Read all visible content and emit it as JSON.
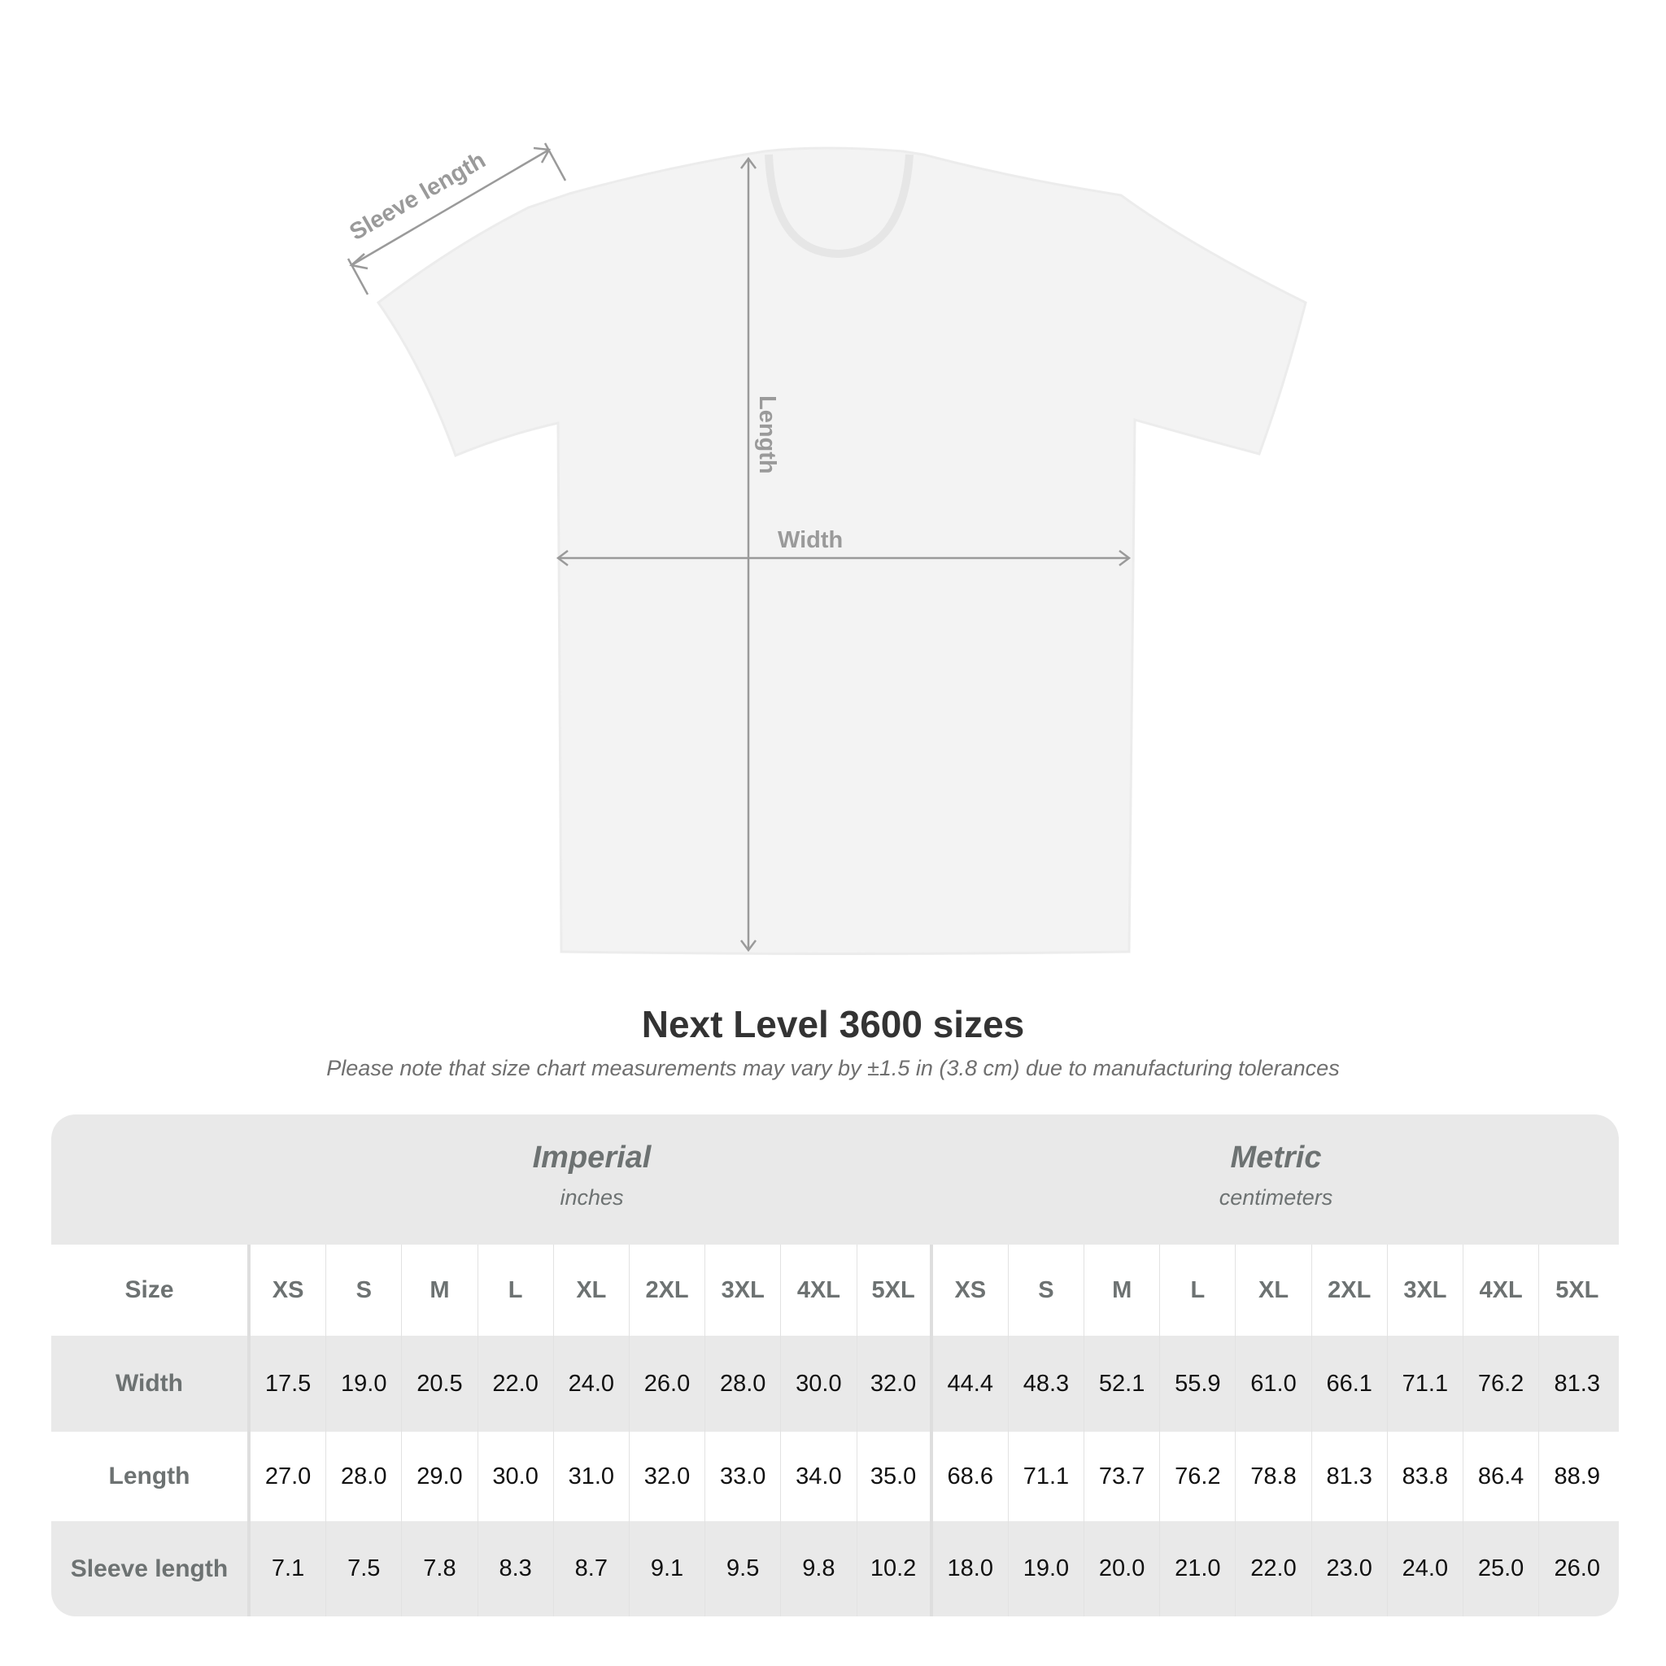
{
  "diagram": {
    "sleeve_label": "Sleeve length",
    "length_label": "Length",
    "width_label": "Width"
  },
  "title": "Next Level 3600 sizes",
  "subtitle": "Please note that size chart measurements may vary by ±1.5 in (3.8 cm) due to manufacturing tolerances",
  "table": {
    "imperial": {
      "name": "Imperial",
      "unit": "inches"
    },
    "metric": {
      "name": "Metric",
      "unit": "centimeters"
    },
    "size_label": "Size",
    "sizes": [
      "XS",
      "S",
      "M",
      "L",
      "XL",
      "2XL",
      "3XL",
      "4XL",
      "5XL"
    ],
    "rows": [
      {
        "label": "Width",
        "imperial": [
          "17.5",
          "19.0",
          "20.5",
          "22.0",
          "24.0",
          "26.0",
          "28.0",
          "30.0",
          "32.0"
        ],
        "metric": [
          "44.4",
          "48.3",
          "52.1",
          "55.9",
          "61.0",
          "66.1",
          "71.1",
          "76.2",
          "81.3"
        ]
      },
      {
        "label": "Length",
        "imperial": [
          "27.0",
          "28.0",
          "29.0",
          "30.0",
          "31.0",
          "32.0",
          "33.0",
          "34.0",
          "35.0"
        ],
        "metric": [
          "68.6",
          "71.1",
          "73.7",
          "76.2",
          "78.8",
          "81.3",
          "83.8",
          "86.4",
          "88.9"
        ]
      },
      {
        "label": "Sleeve length",
        "imperial": [
          "7.1",
          "7.5",
          "7.8",
          "8.3",
          "8.7",
          "9.1",
          "9.5",
          "9.8",
          "10.2"
        ],
        "metric": [
          "18.0",
          "19.0",
          "20.0",
          "21.0",
          "22.0",
          "23.0",
          "24.0",
          "25.0",
          "26.0"
        ]
      }
    ]
  },
  "colors": {
    "band": "#e9e9e9",
    "label": "#6d7272",
    "arrow": "#9a9a9a",
    "shirt": "#f3f3f3"
  }
}
